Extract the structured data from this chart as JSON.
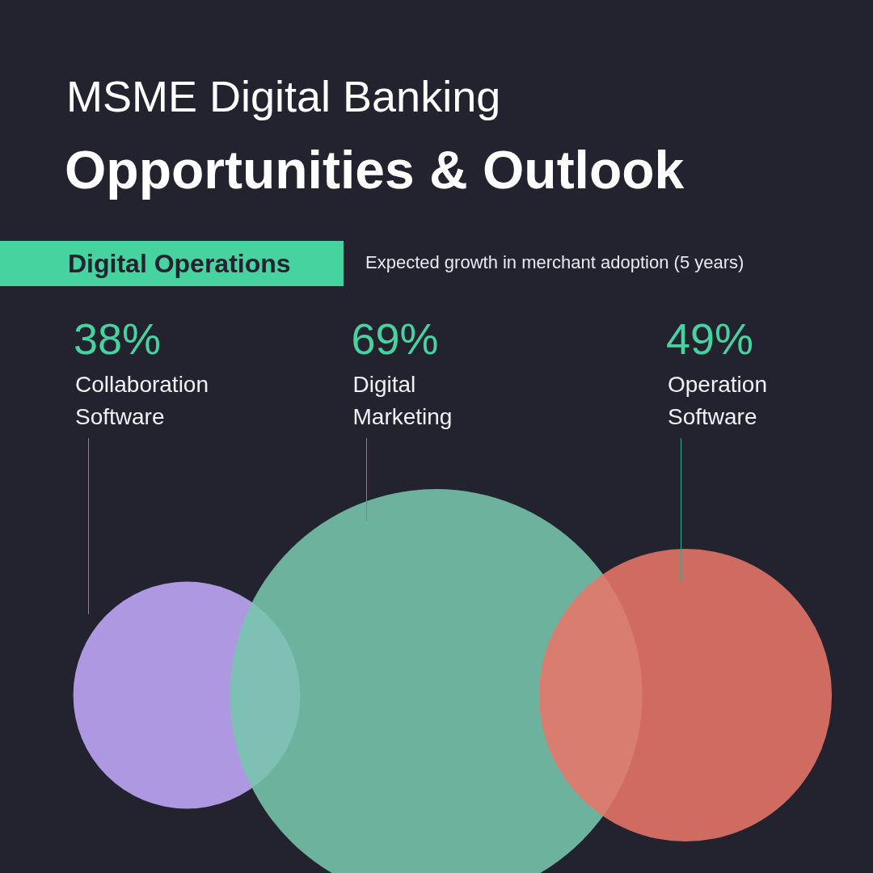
{
  "chart_data": {
    "type": "other",
    "title": "MSME Digital Banking",
    "subtitle": "Opportunities & Outlook",
    "annotations": [
      "Digital Operations",
      "Expected growth in merchant adoption (5 years)"
    ],
    "categories": [
      "Collaboration Software",
      "Digital Marketing",
      "Operation Software"
    ],
    "values": [
      38,
      69,
      49
    ],
    "value_labels": [
      "38%",
      "69%",
      "49%"
    ],
    "colors": [
      "#c0a8fb",
      "#78c6ad",
      "#e8756a"
    ]
  }
}
